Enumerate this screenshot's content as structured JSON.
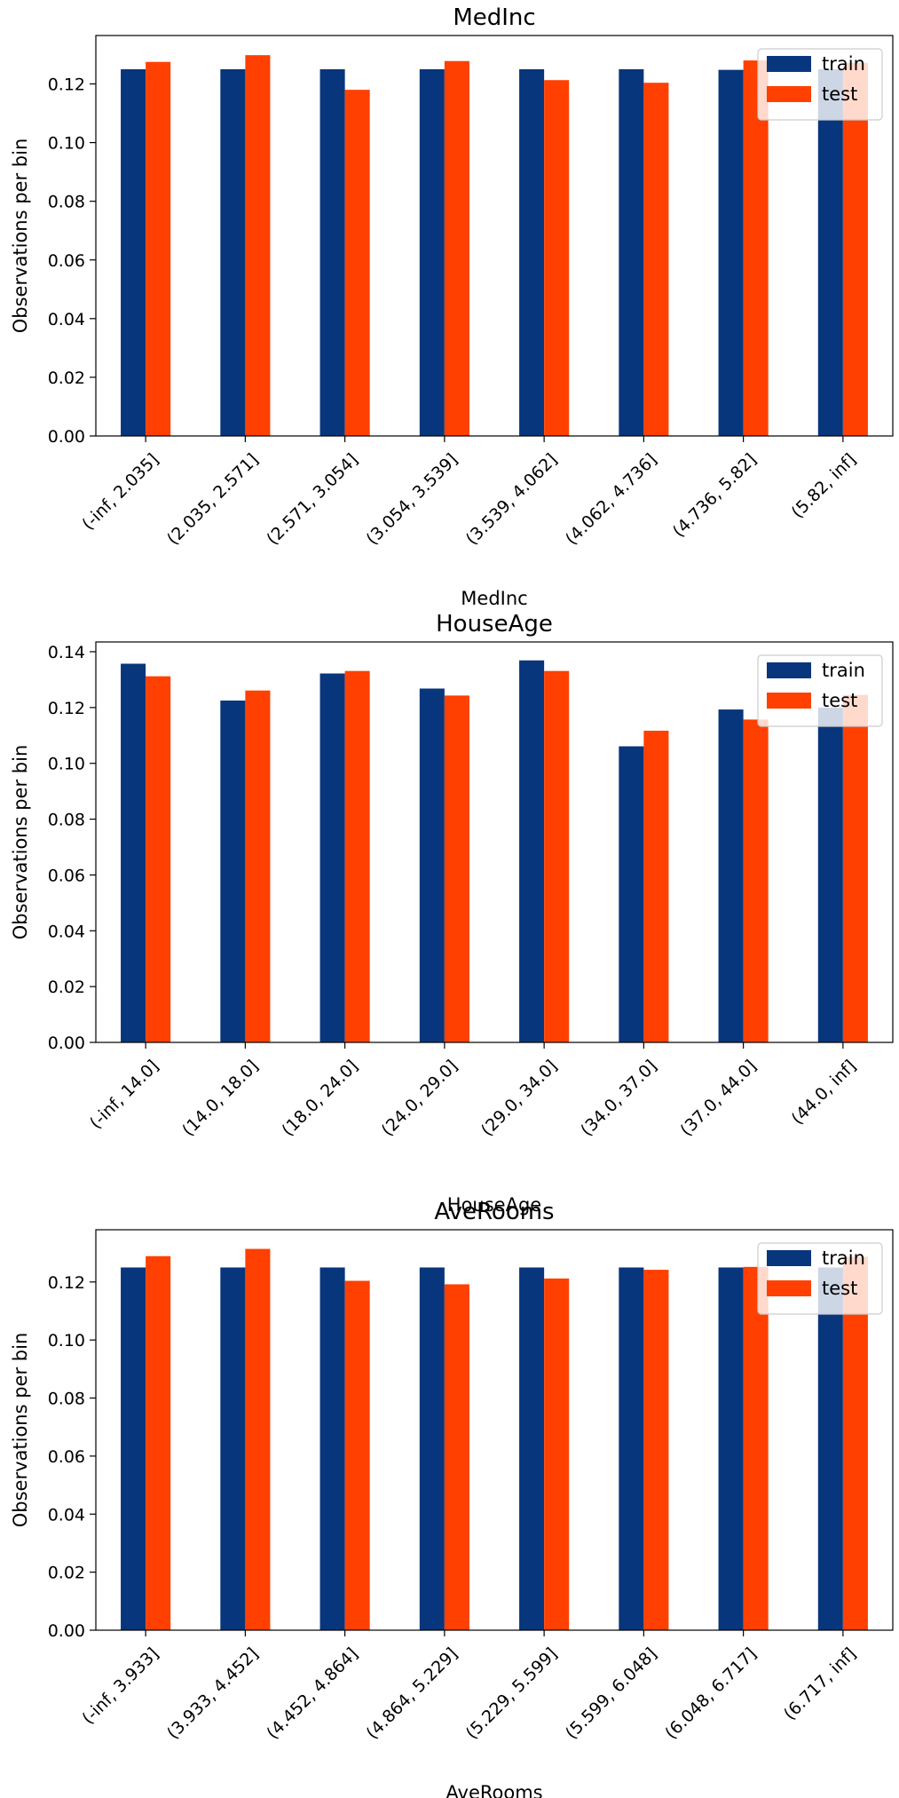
{
  "chart_data": [
    {
      "type": "bar",
      "title": "MedInc",
      "xlabel": "MedInc",
      "ylabel": "Observations per bin",
      "ylim": [
        0,
        0.1365
      ],
      "yticks": [
        0.0,
        0.02,
        0.04,
        0.06,
        0.08,
        0.1,
        0.12
      ],
      "categories": [
        "(-inf, 2.035]",
        "(2.035, 2.571]",
        "(2.571, 3.054]",
        "(3.054, 3.539]",
        "(3.539, 4.062]",
        "(4.062, 4.736]",
        "(4.736, 5.82]",
        "(5.82, inf]"
      ],
      "series": [
        {
          "name": "train",
          "color": "#08367c",
          "values": [
            0.125,
            0.125,
            0.125,
            0.125,
            0.125,
            0.125,
            0.1248,
            0.125
          ]
        },
        {
          "name": "test",
          "color": "#ff4001",
          "values": [
            0.1275,
            0.1298,
            0.118,
            0.1278,
            0.1213,
            0.1204,
            0.128,
            0.1272
          ]
        }
      ],
      "legend": "top-right",
      "grid": false
    },
    {
      "type": "bar",
      "title": "HouseAge",
      "xlabel": "HouseAge",
      "ylabel": "Observations per bin",
      "ylim": [
        0,
        0.1435
      ],
      "yticks": [
        0.0,
        0.02,
        0.04,
        0.06,
        0.08,
        0.1,
        0.12,
        0.14
      ],
      "categories": [
        "(-inf, 14.0]",
        "(14.0, 18.0]",
        "(18.0, 24.0]",
        "(24.0, 29.0]",
        "(29.0, 34.0]",
        "(34.0, 37.0]",
        "(37.0, 44.0]",
        "(44.0, inf]"
      ],
      "series": [
        {
          "name": "train",
          "color": "#08367c",
          "values": [
            0.1357,
            0.1225,
            0.1322,
            0.1268,
            0.1369,
            0.1061,
            0.1193,
            0.12
          ]
        },
        {
          "name": "test",
          "color": "#ff4001",
          "values": [
            0.1312,
            0.1261,
            0.1331,
            0.1243,
            0.1331,
            0.1117,
            0.1157,
            0.1245
          ]
        }
      ],
      "legend": "top-right",
      "grid": false
    },
    {
      "type": "bar",
      "title": "AveRooms",
      "xlabel": "AveRooms",
      "ylabel": "Observations per bin",
      "ylim": [
        0,
        0.138
      ],
      "yticks": [
        0.0,
        0.02,
        0.04,
        0.06,
        0.08,
        0.1,
        0.12
      ],
      "categories": [
        "(-inf, 3.933]",
        "(3.933, 4.452]",
        "(4.452, 4.864]",
        "(4.864, 5.229]",
        "(5.229, 5.599]",
        "(5.599, 6.048]",
        "(6.048, 6.717]",
        "(6.717, inf]"
      ],
      "series": [
        {
          "name": "train",
          "color": "#08367c",
          "values": [
            0.125,
            0.125,
            0.125,
            0.125,
            0.125,
            0.125,
            0.125,
            0.125
          ]
        },
        {
          "name": "test",
          "color": "#ff4001",
          "values": [
            0.1289,
            0.1314,
            0.1204,
            0.1192,
            0.1212,
            0.1242,
            0.1252,
            0.1287
          ]
        }
      ],
      "legend": "top-right",
      "grid": false
    }
  ]
}
